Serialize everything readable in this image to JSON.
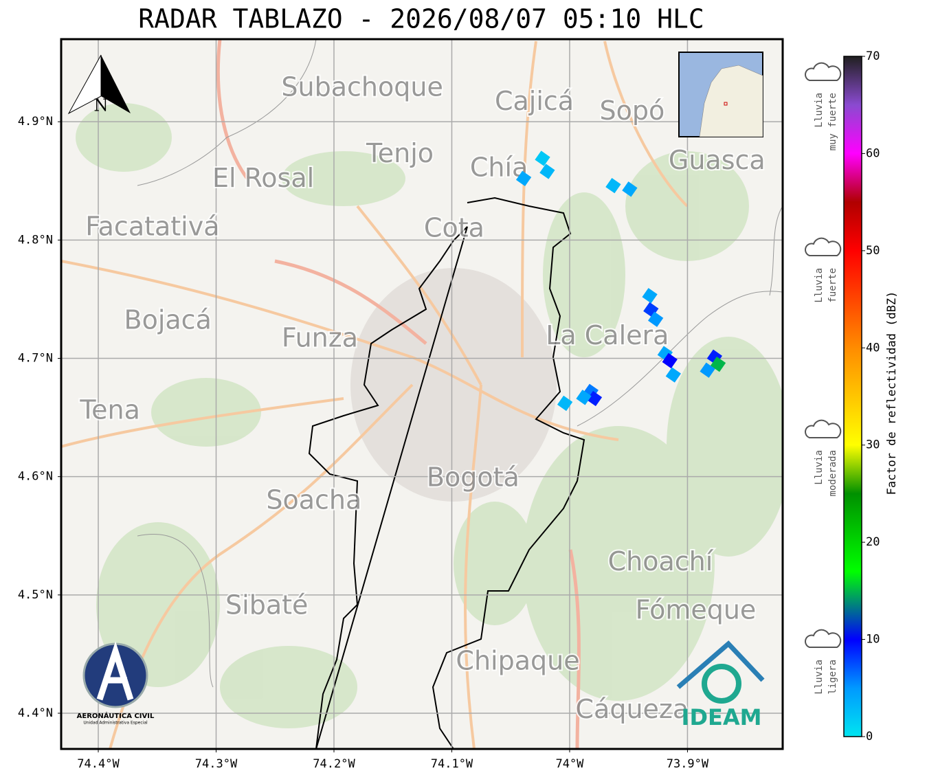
{
  "title": "RADAR TABLAZO - 2026/08/07 05:10 HLC",
  "map": {
    "xlim": [
      -74.4315,
      -73.8192
    ],
    "ylim": [
      4.3698,
      4.9698
    ],
    "xticks": [
      {
        "value": -74.4,
        "label": "74.4°W"
      },
      {
        "value": -74.3,
        "label": "74.3°W"
      },
      {
        "value": -74.2,
        "label": "74.2°W"
      },
      {
        "value": -74.1,
        "label": "74.1°W"
      },
      {
        "value": -74.0,
        "label": "74°W"
      },
      {
        "value": -73.9,
        "label": "73.9°W"
      }
    ],
    "yticks": [
      {
        "value": 4.9,
        "label": "4.9°N"
      },
      {
        "value": 4.8,
        "label": "4.8°N"
      },
      {
        "value": 4.7,
        "label": "4.7°N"
      },
      {
        "value": 4.6,
        "label": "4.6°N"
      },
      {
        "value": 4.5,
        "label": "4.5°N"
      },
      {
        "value": 4.4,
        "label": "4.4°N"
      }
    ],
    "grid": true,
    "places": [
      {
        "name": "Subachoque",
        "lon": -74.176,
        "lat": 4.928
      },
      {
        "name": "Cajicá",
        "lon": -74.03,
        "lat": 4.916
      },
      {
        "name": "Sopó",
        "lon": -73.947,
        "lat": 4.908
      },
      {
        "name": "Tenjo",
        "lon": -74.144,
        "lat": 4.872
      },
      {
        "name": "Chía",
        "lon": -74.06,
        "lat": 4.86
      },
      {
        "name": "Guasca",
        "lon": -73.875,
        "lat": 4.866
      },
      {
        "name": "El Rosal",
        "lon": -74.26,
        "lat": 4.851
      },
      {
        "name": "Facatativá",
        "lon": -74.354,
        "lat": 4.81
      },
      {
        "name": "Cota",
        "lon": -74.098,
        "lat": 4.809
      },
      {
        "name": "Bojacá",
        "lon": -74.341,
        "lat": 4.731
      },
      {
        "name": "Funza",
        "lon": -74.212,
        "lat": 4.716
      },
      {
        "name": "La Calera",
        "lon": -73.968,
        "lat": 4.718
      },
      {
        "name": "Tena",
        "lon": -74.39,
        "lat": 4.655
      },
      {
        "name": "Bogotá",
        "lon": -74.082,
        "lat": 4.598
      },
      {
        "name": "Soacha",
        "lon": -74.217,
        "lat": 4.579
      },
      {
        "name": "Choachí",
        "lon": -73.923,
        "lat": 4.527
      },
      {
        "name": "Sibaté",
        "lon": -74.257,
        "lat": 4.49
      },
      {
        "name": "Fómeque",
        "lon": -73.893,
        "lat": 4.486
      },
      {
        "name": "Chipaque",
        "lon": -74.044,
        "lat": 4.443
      },
      {
        "name": "Cáqueza",
        "lon": -73.947,
        "lat": 4.402
      }
    ],
    "echoes": {
      "lon": [
        -74.039,
        -74.019,
        -74.023,
        -73.963,
        -73.949,
        -73.932,
        -73.931,
        -73.927,
        -73.919,
        -73.915,
        -73.912,
        -73.877,
        -73.874,
        -73.883,
        -73.982,
        -73.979,
        -73.988,
        -74.004
      ],
      "lat": [
        4.852,
        4.858,
        4.869,
        4.846,
        4.843,
        4.753,
        4.741,
        4.733,
        4.704,
        4.698,
        4.686,
        4.701,
        4.695,
        4.69,
        4.672,
        4.666,
        4.667,
        4.662
      ],
      "values": [
        4,
        3,
        2,
        3,
        4,
        4,
        8,
        5,
        4,
        10,
        4,
        9,
        15,
        5,
        6,
        9,
        4,
        3
      ]
    }
  },
  "colorbar": {
    "label": "Factor de reflectividad (dBZ)",
    "lim": [
      0,
      70
    ],
    "ticks": [
      0,
      10,
      20,
      30,
      40,
      50,
      60,
      70
    ],
    "stops": [
      {
        "value": 0,
        "color": "#00e5f0"
      },
      {
        "value": 5,
        "color": "#0099ff"
      },
      {
        "value": 10,
        "color": "#0000ff"
      },
      {
        "value": 17,
        "color": "#00ff00"
      },
      {
        "value": 25,
        "color": "#009000"
      },
      {
        "value": 30,
        "color": "#ffff00"
      },
      {
        "value": 40,
        "color": "#ff8c00"
      },
      {
        "value": 50,
        "color": "#ff0000"
      },
      {
        "value": 55,
        "color": "#b00000"
      },
      {
        "value": 60,
        "color": "#ff00ff"
      },
      {
        "value": 65,
        "color": "#8a4ad0"
      },
      {
        "value": 70,
        "color": "#202020"
      }
    ]
  },
  "legend": [
    {
      "lines": [
        "Lluvia",
        "muy fuerte"
      ]
    },
    {
      "lines": [
        "Lluvia",
        "fuerte"
      ]
    },
    {
      "lines": [
        "Lluvia",
        "moderada"
      ]
    },
    {
      "lines": [
        "Lluvia",
        "ligera"
      ]
    }
  ],
  "north": "N",
  "logos": {
    "aero": "AERONÁUTICA CIVIL",
    "aero_sub": "Unidad Administrativa Especial",
    "ideam": "IDEAM"
  }
}
